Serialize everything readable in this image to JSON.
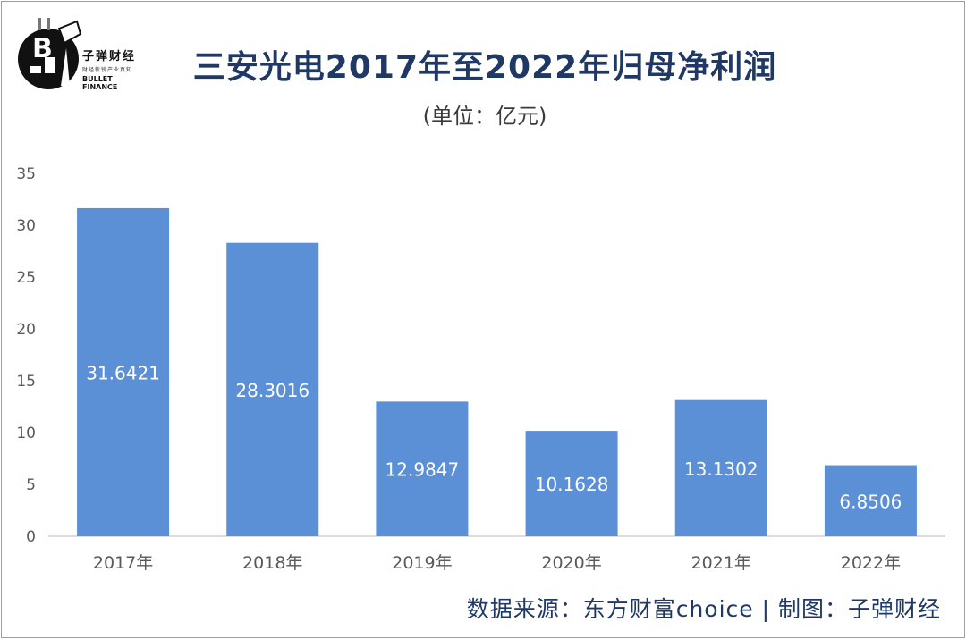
{
  "header": {
    "title": "三安光电2017年至2022年归母净利润",
    "subtitle": "(单位：亿元)"
  },
  "logo": {
    "name_cn": "子弹财经",
    "tagline": "财经新锐产业真知",
    "name_en": "BULLET FINANCE"
  },
  "footer": {
    "source": "数据来源：东方财富choice  |  制图：子弹财经"
  },
  "colors": {
    "bar": "#5b8fd6",
    "title": "#1f3864",
    "axis_text": "#595959",
    "data_label": "#ffffff"
  },
  "chart_data": {
    "type": "bar",
    "title": "三安光电2017年至2022年归母净利润",
    "subtitle": "(单位：亿元)",
    "categories": [
      "2017年",
      "2018年",
      "2019年",
      "2020年",
      "2021年",
      "2022年"
    ],
    "values": [
      31.6421,
      28.3016,
      12.9847,
      10.1628,
      13.1302,
      6.8506
    ],
    "data_labels": [
      "31.6421",
      "28.3016",
      "12.9847",
      "10.1628",
      "13.1302",
      "6.8506"
    ],
    "yticks": [
      0,
      5,
      10,
      15,
      20,
      25,
      30,
      35
    ],
    "ylim": [
      0,
      35
    ],
    "grid": false,
    "legend": "none"
  }
}
